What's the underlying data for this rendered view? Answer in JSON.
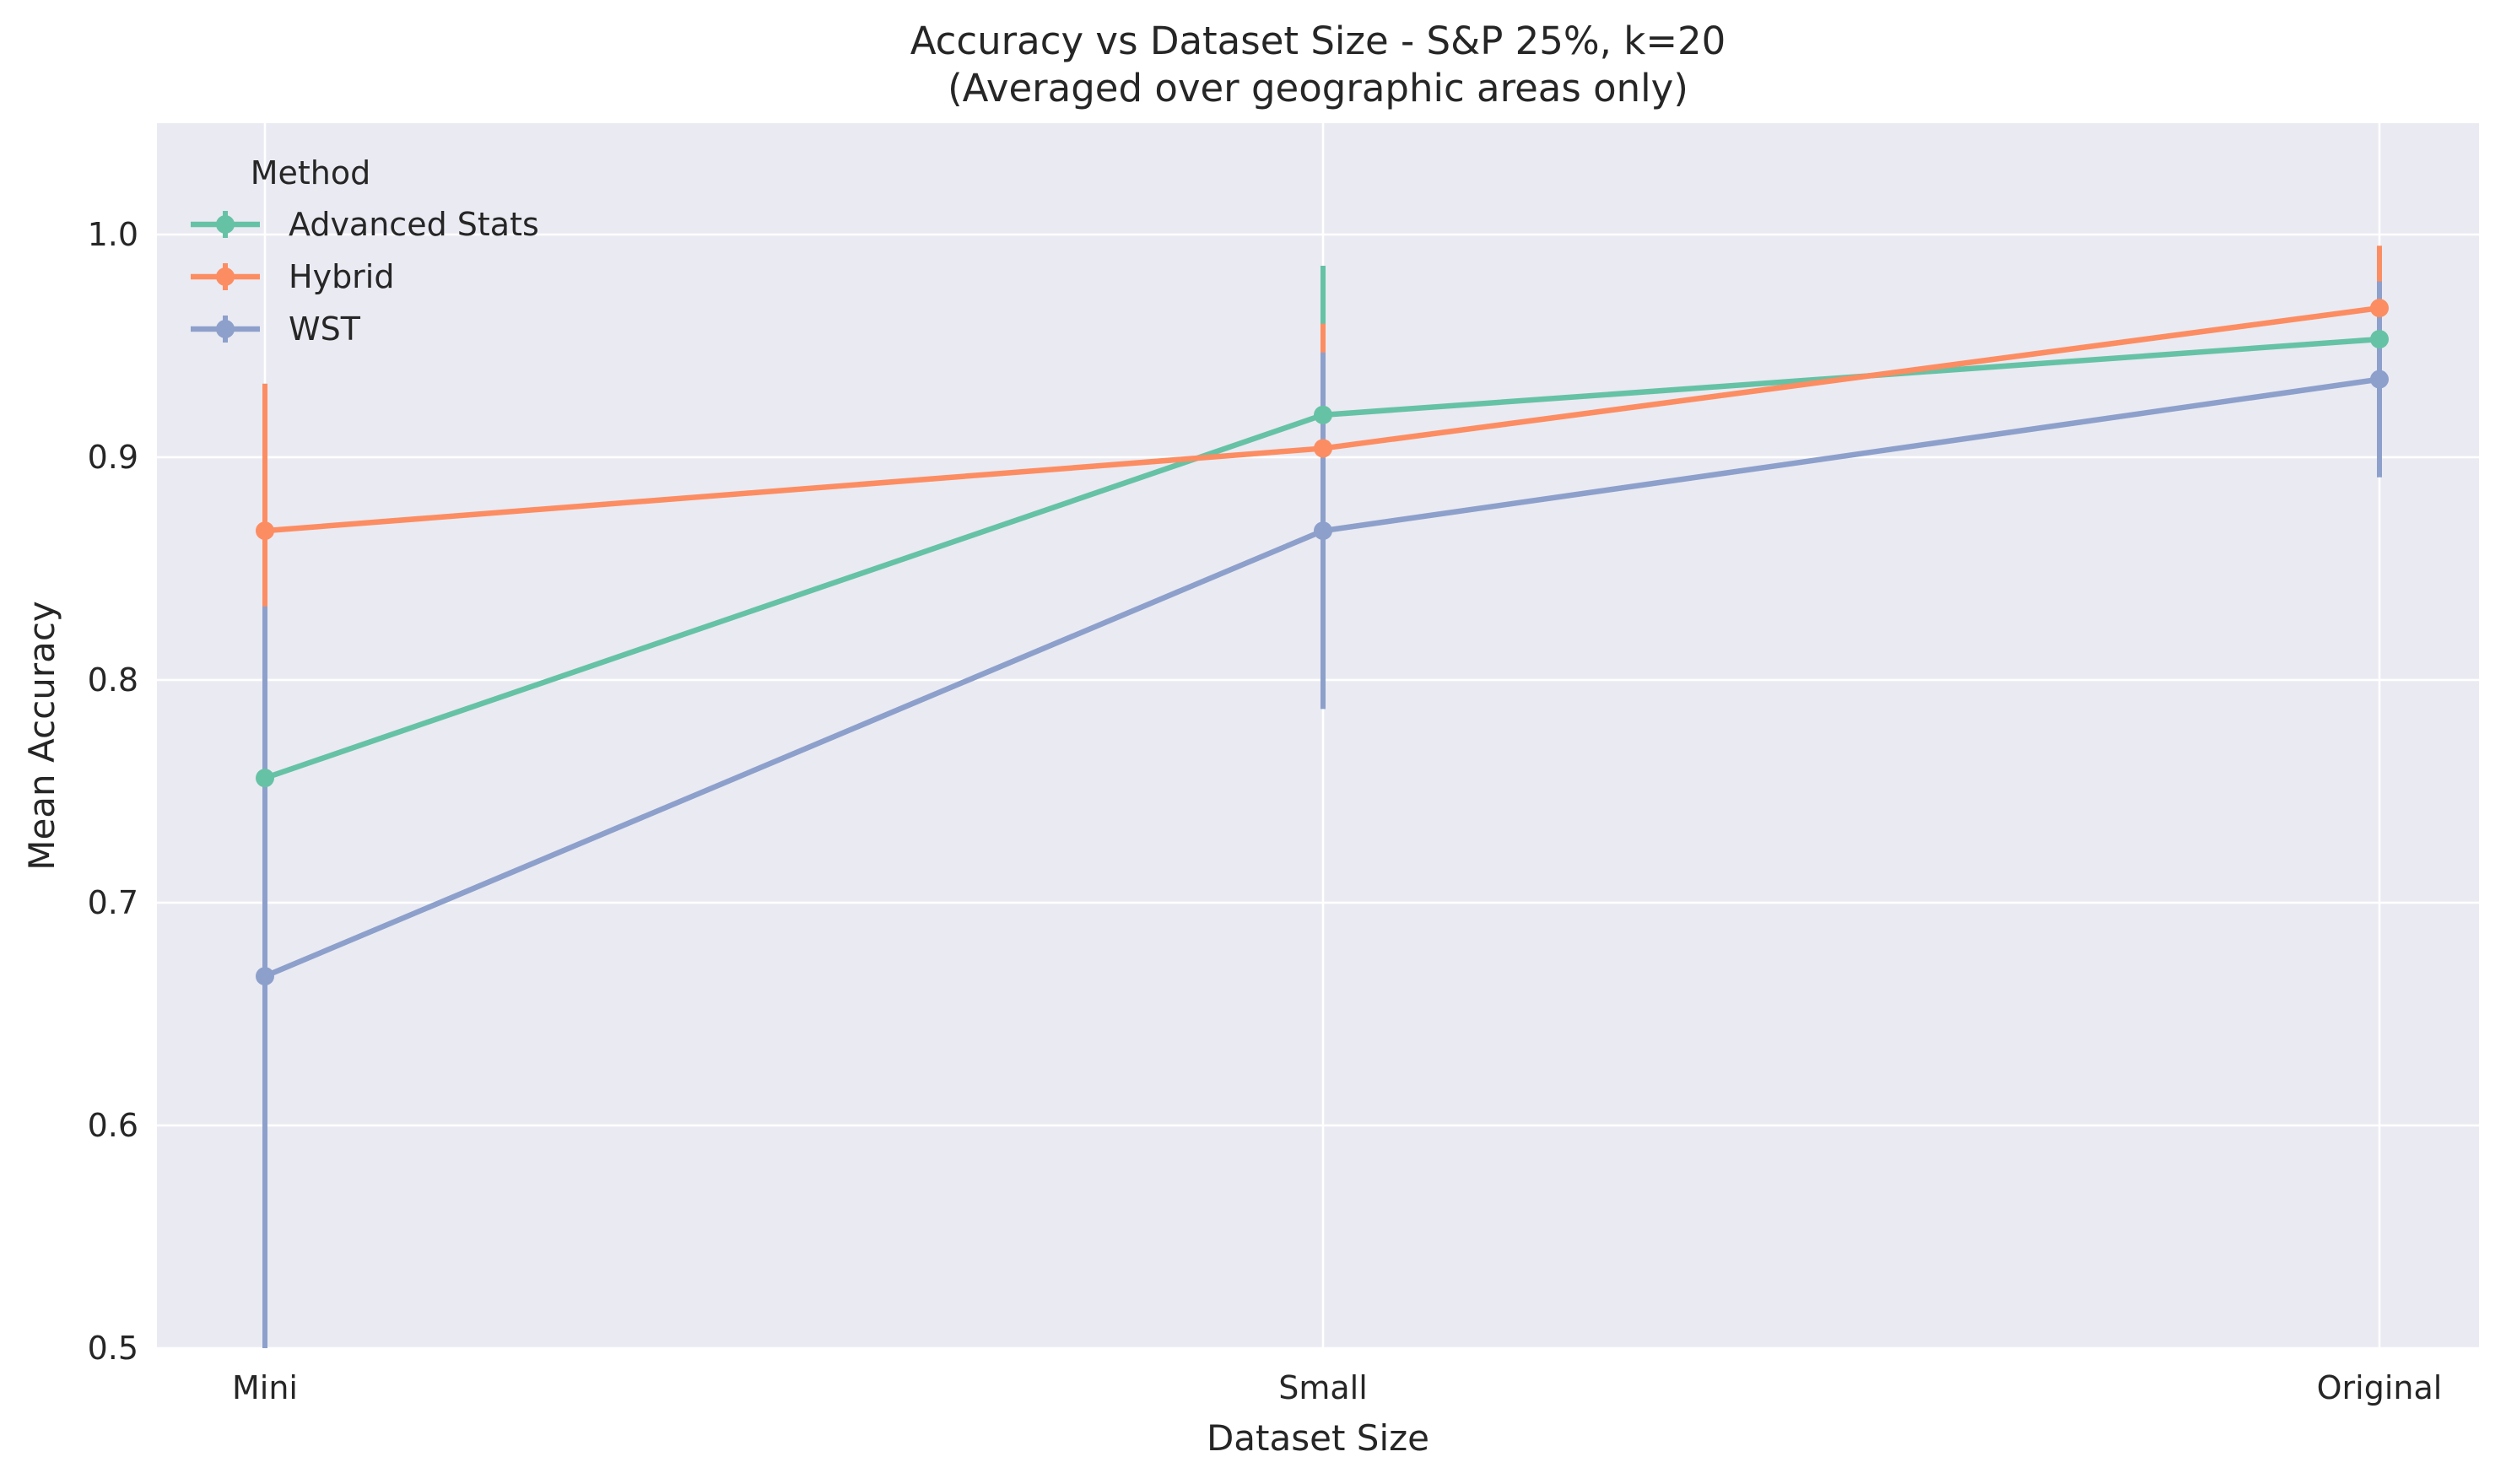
{
  "chart_data": {
    "type": "line",
    "title": "Accuracy vs Dataset Size - S&P 25%, k=20",
    "subtitle": "(Averaged over geographic areas only)",
    "xlabel": "Dataset Size",
    "ylabel": "Mean Accuracy",
    "categories": [
      "Mini",
      "Small",
      "Original"
    ],
    "ylim": [
      0.5,
      1.05
    ],
    "yticks": [
      "0.5",
      "0.6",
      "0.7",
      "0.8",
      "0.9",
      "1.0"
    ],
    "grid": true,
    "legend": {
      "title": "Method",
      "placement": "top-left"
    },
    "series": [
      {
        "name": "Advanced Stats",
        "color": "#66c2a5",
        "values": [
          0.756,
          0.919,
          0.953
        ],
        "err_low": [
          0.5,
          0.852,
          0.926
        ],
        "err_high": [
          0.933,
          0.986,
          0.98
        ]
      },
      {
        "name": "Hybrid",
        "color": "#fc8d62",
        "values": [
          0.867,
          0.904,
          0.967
        ],
        "err_low": [
          0.8,
          0.848,
          0.938
        ],
        "err_high": [
          0.933,
          0.96,
          0.995
        ]
      },
      {
        "name": "WST",
        "color": "#8da0cb",
        "values": [
          0.667,
          0.867,
          0.935
        ],
        "err_low": [
          0.5,
          0.787,
          0.891
        ],
        "err_high": [
          0.833,
          0.947,
          0.979
        ]
      }
    ]
  }
}
